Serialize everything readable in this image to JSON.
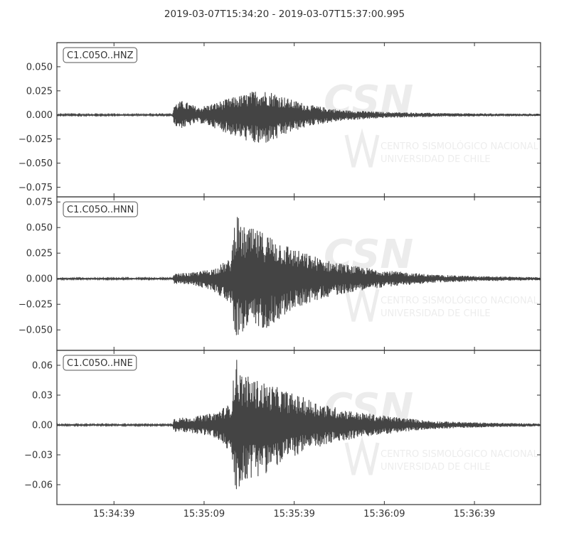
{
  "chart_data": {
    "type": "line",
    "title": "2019-03-07T15:34:20  -  2019-03-07T15:37:00.995",
    "x_start": "2019-03-07T15:34:20",
    "x_end": "2019-03-07T15:37:00.995",
    "x_tick_labels": [
      "15:34:39",
      "15:35:09",
      "15:35:39",
      "15:36:09",
      "15:36:39"
    ],
    "x_tick_seconds": [
      19,
      49,
      79,
      109,
      139
    ],
    "xlim_seconds": [
      0,
      161
    ],
    "line_color": "#444444",
    "grid": false,
    "watermark_text": [
      "CENTRO SISMOLÓGICO NACIONAL",
      "UNIVERSIDAD DE CHILE"
    ],
    "panels": [
      {
        "trace": "C1.C05O..HNZ",
        "ylim": [
          -0.085,
          0.075
        ],
        "y_ticks": [
          0.05,
          0.025,
          0.0,
          -0.025,
          -0.05,
          -0.075
        ],
        "y_tick_labels": [
          "0.050",
          "0.025",
          "0.000",
          "−0.025",
          "−0.050",
          "−0.075"
        ],
        "envelope": {
          "t": [
            0,
            38.5,
            39,
            42,
            47,
            52,
            58,
            63,
            67,
            72,
            78,
            85,
            95,
            110,
            130,
            161
          ],
          "max": [
            0.0008,
            0.0008,
            0.012,
            0.015,
            0.008,
            0.012,
            0.018,
            0.022,
            0.027,
            0.024,
            0.016,
            0.01,
            0.005,
            0.003,
            0.0018,
            0.0012
          ],
          "min": [
            -0.0008,
            -0.0008,
            -0.012,
            -0.014,
            -0.008,
            -0.013,
            -0.021,
            -0.027,
            -0.032,
            -0.028,
            -0.018,
            -0.011,
            -0.006,
            -0.003,
            -0.0018,
            -0.0012
          ]
        }
      },
      {
        "trace": "C1.C05O..HNN",
        "ylim": [
          -0.07,
          0.08
        ],
        "y_ticks": [
          0.075,
          0.05,
          0.025,
          0.0,
          -0.025,
          -0.05
        ],
        "y_tick_labels": [
          "0.075",
          "0.050",
          "0.025",
          "0.000",
          "−0.025",
          "−0.050"
        ],
        "envelope": {
          "t": [
            0,
            38.5,
            39,
            45,
            52,
            58,
            59.5,
            61,
            64,
            70,
            80,
            90,
            100,
            110,
            125,
            140,
            161
          ],
          "max": [
            0.0008,
            0.0008,
            0.005,
            0.006,
            0.01,
            0.02,
            0.072,
            0.052,
            0.05,
            0.045,
            0.028,
            0.018,
            0.012,
            0.008,
            0.004,
            0.0025,
            0.0015
          ],
          "min": [
            -0.0008,
            -0.0008,
            -0.005,
            -0.006,
            -0.012,
            -0.025,
            -0.057,
            -0.055,
            -0.05,
            -0.048,
            -0.028,
            -0.018,
            -0.012,
            -0.008,
            -0.004,
            -0.0025,
            -0.0015
          ]
        }
      },
      {
        "trace": "C1.C05O..HNE",
        "ylim": [
          -0.08,
          0.075
        ],
        "y_ticks": [
          0.06,
          0.03,
          0.0,
          -0.03,
          -0.06
        ],
        "y_tick_labels": [
          "0.06",
          "0.03",
          "0.00",
          "−0.03",
          "−0.06"
        ],
        "envelope": {
          "t": [
            0,
            38.5,
            39,
            45,
            52,
            58,
            59.5,
            61,
            64,
            70,
            80,
            90,
            100,
            110,
            125,
            140,
            161
          ],
          "max": [
            0.0008,
            0.0008,
            0.007,
            0.008,
            0.012,
            0.022,
            0.071,
            0.055,
            0.048,
            0.042,
            0.03,
            0.02,
            0.013,
            0.009,
            0.004,
            0.0025,
            0.0015
          ],
          "min": [
            -0.0008,
            -0.0008,
            -0.007,
            -0.008,
            -0.012,
            -0.028,
            -0.075,
            -0.06,
            -0.055,
            -0.048,
            -0.03,
            -0.02,
            -0.013,
            -0.009,
            -0.004,
            -0.0025,
            -0.0015
          ]
        }
      }
    ]
  }
}
